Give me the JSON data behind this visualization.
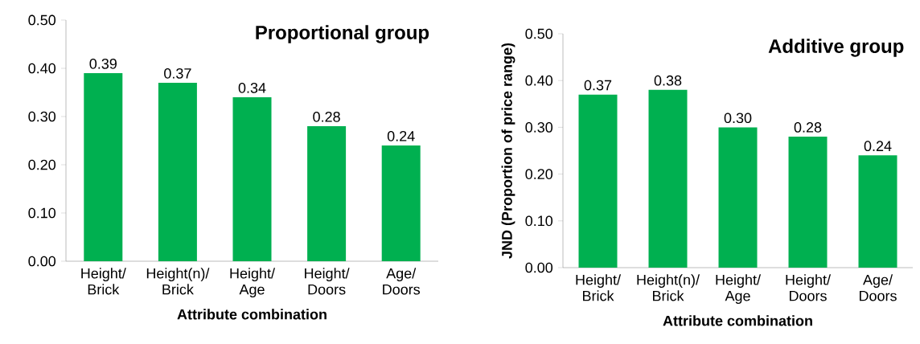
{
  "chart_data": [
    {
      "type": "bar",
      "title": "Proportional group",
      "xlabel": "Attribute combination",
      "categories": [
        "Height/ Brick",
        "Height(n)/ Brick",
        "Height/ Age",
        "Height/ Doors",
        "Age/ Doors"
      ],
      "values": [
        0.39,
        0.37,
        0.34,
        0.28,
        0.24
      ],
      "value_labels": [
        "0.39",
        "0.37",
        "0.34",
        "0.28",
        "0.24"
      ],
      "color": "#00b050",
      "ylim": [
        0,
        0.5
      ],
      "yticks": [
        {
          "value": 0,
          "label": "0.00"
        },
        {
          "value": 0.1,
          "label": "0.10"
        },
        {
          "value": 0.2,
          "label": "0.20"
        },
        {
          "value": 0.3,
          "label": "0.30"
        },
        {
          "value": 0.4,
          "label": "0.40"
        },
        {
          "value": 0.5,
          "label": "0.50"
        }
      ],
      "grid": false
    },
    {
      "type": "bar",
      "title": "Additive group",
      "xlabel": "Attribute combination",
      "ylabel": "JND (Proportion of price range)",
      "categories": [
        "Height/ Brick",
        "Height(n)/ Brick",
        "Height/ Age",
        "Height/ Doors",
        "Age/ Doors"
      ],
      "values": [
        0.37,
        0.38,
        0.3,
        0.28,
        0.24
      ],
      "value_labels": [
        "0.37",
        "0.38",
        "0.30",
        "0.28",
        "0.24"
      ],
      "color": "#00b050",
      "ylim": [
        0,
        0.5
      ],
      "yticks": [
        {
          "value": 0,
          "label": "0.00"
        },
        {
          "value": 0.1,
          "label": "0.10"
        },
        {
          "value": 0.2,
          "label": "0.20"
        },
        {
          "value": 0.3,
          "label": "0.30"
        },
        {
          "value": 0.4,
          "label": "0.40"
        },
        {
          "value": 0.5,
          "label": "0.50"
        }
      ],
      "grid": false
    }
  ]
}
